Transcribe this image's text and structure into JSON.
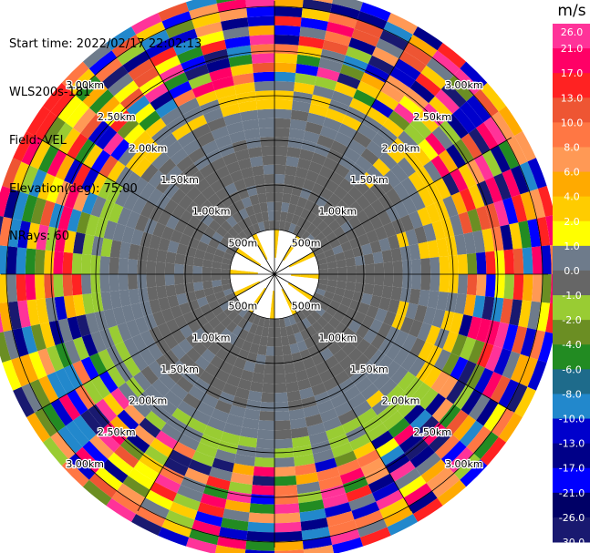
{
  "info": {
    "start_time": "Start time: 2022/02/17 22:02:13",
    "instrument": "WLS200s-181",
    "field": "Field: VEL",
    "elevation": "Elevation(deg): 75.00",
    "nrays": "NRays: 60"
  },
  "range_labels": [
    "500m",
    "1.00km",
    "1.50km",
    "2.00km",
    "2.50km",
    "3.00km"
  ],
  "colorbar": {
    "unit": "m/s",
    "ticks": [
      "26.0",
      "21.0",
      "17.0",
      "13.0",
      "10.0",
      "8.0",
      "6.0",
      "4.0",
      "2.0",
      "1.0",
      "0.0",
      "-1.0",
      "-2.0",
      "-4.0",
      "-6.0",
      "-8.0",
      "-10.0",
      "-13.0",
      "-17.0",
      "-21.0",
      "-26.0",
      "-30.0"
    ],
    "colors": [
      "#ff3399",
      "#ff0066",
      "#ff2222",
      "#ee5533",
      "#ff7744",
      "#ff9955",
      "#ffaa00",
      "#ffcc00",
      "#ffff00",
      "#6e7b8b",
      "#666666",
      "#99cc33",
      "#6b8e23",
      "#228b22",
      "#1e6b8b",
      "#2288cc",
      "#0000cc",
      "#000088",
      "#0000ff",
      "#000066",
      "#191970"
    ]
  }
}
